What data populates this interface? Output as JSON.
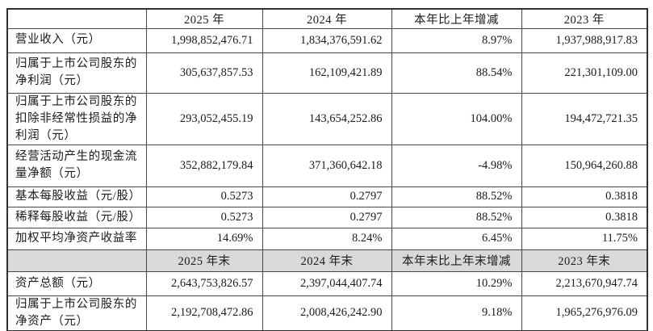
{
  "colors": {
    "section_header_bg": "#d9d9d9",
    "border": "#454545",
    "outer_border": "#2f2f2f",
    "text": "#1b1b1b",
    "page_bg": "#ffffff"
  },
  "table": {
    "description": "财务主要指标表",
    "rows": [
      {
        "type": "column-header",
        "cells": [
          "",
          "2025 年",
          "2024 年",
          "本年比上年增减",
          "2023 年"
        ]
      },
      {
        "type": "data",
        "cells": [
          "营业收入（元）",
          "1,998,852,476.71",
          "1,834,376,591.62",
          "8.97%",
          "1,937,988,917.83"
        ]
      },
      {
        "type": "data",
        "cells": [
          "归属于上市公司股东的净利润（元）",
          "305,637,857.53",
          "162,109,421.89",
          "88.54%",
          "221,301,109.00"
        ]
      },
      {
        "type": "data",
        "cells": [
          "归属于上市公司股东的扣除非经常性损益的净利润（元）",
          "293,052,455.19",
          "143,654,252.86",
          "104.00%",
          "194,472,721.35"
        ]
      },
      {
        "type": "data",
        "cells": [
          "经营活动产生的现金流量净额（元）",
          "352,882,179.84",
          "371,360,642.18",
          "-4.98%",
          "150,964,260.88"
        ]
      },
      {
        "type": "data",
        "cells": [
          "基本每股收益（元/股）",
          "0.5273",
          "0.2797",
          "88.52%",
          "0.3818"
        ]
      },
      {
        "type": "data",
        "cells": [
          "稀释每股收益（元/股）",
          "0.5273",
          "0.2797",
          "88.52%",
          "0.3818"
        ]
      },
      {
        "type": "data",
        "cells": [
          "加权平均净资产收益率",
          "14.69%",
          "8.24%",
          "6.45%",
          "11.75%"
        ]
      },
      {
        "type": "section-header",
        "cells": [
          "",
          "2025 年末",
          "2024 年末",
          "本年末比上年末增减",
          "2023 年末"
        ]
      },
      {
        "type": "data",
        "cells": [
          "资产总额（元）",
          "2,643,753,826.57",
          "2,397,044,407.74",
          "10.29%",
          "2,213,670,947.74"
        ]
      },
      {
        "type": "data",
        "cells": [
          "归属于上市公司股东的净资产（元）",
          "2,192,708,472.86",
          "2,008,426,242.90",
          "9.18%",
          "1,965,276,976.09"
        ]
      }
    ]
  }
}
